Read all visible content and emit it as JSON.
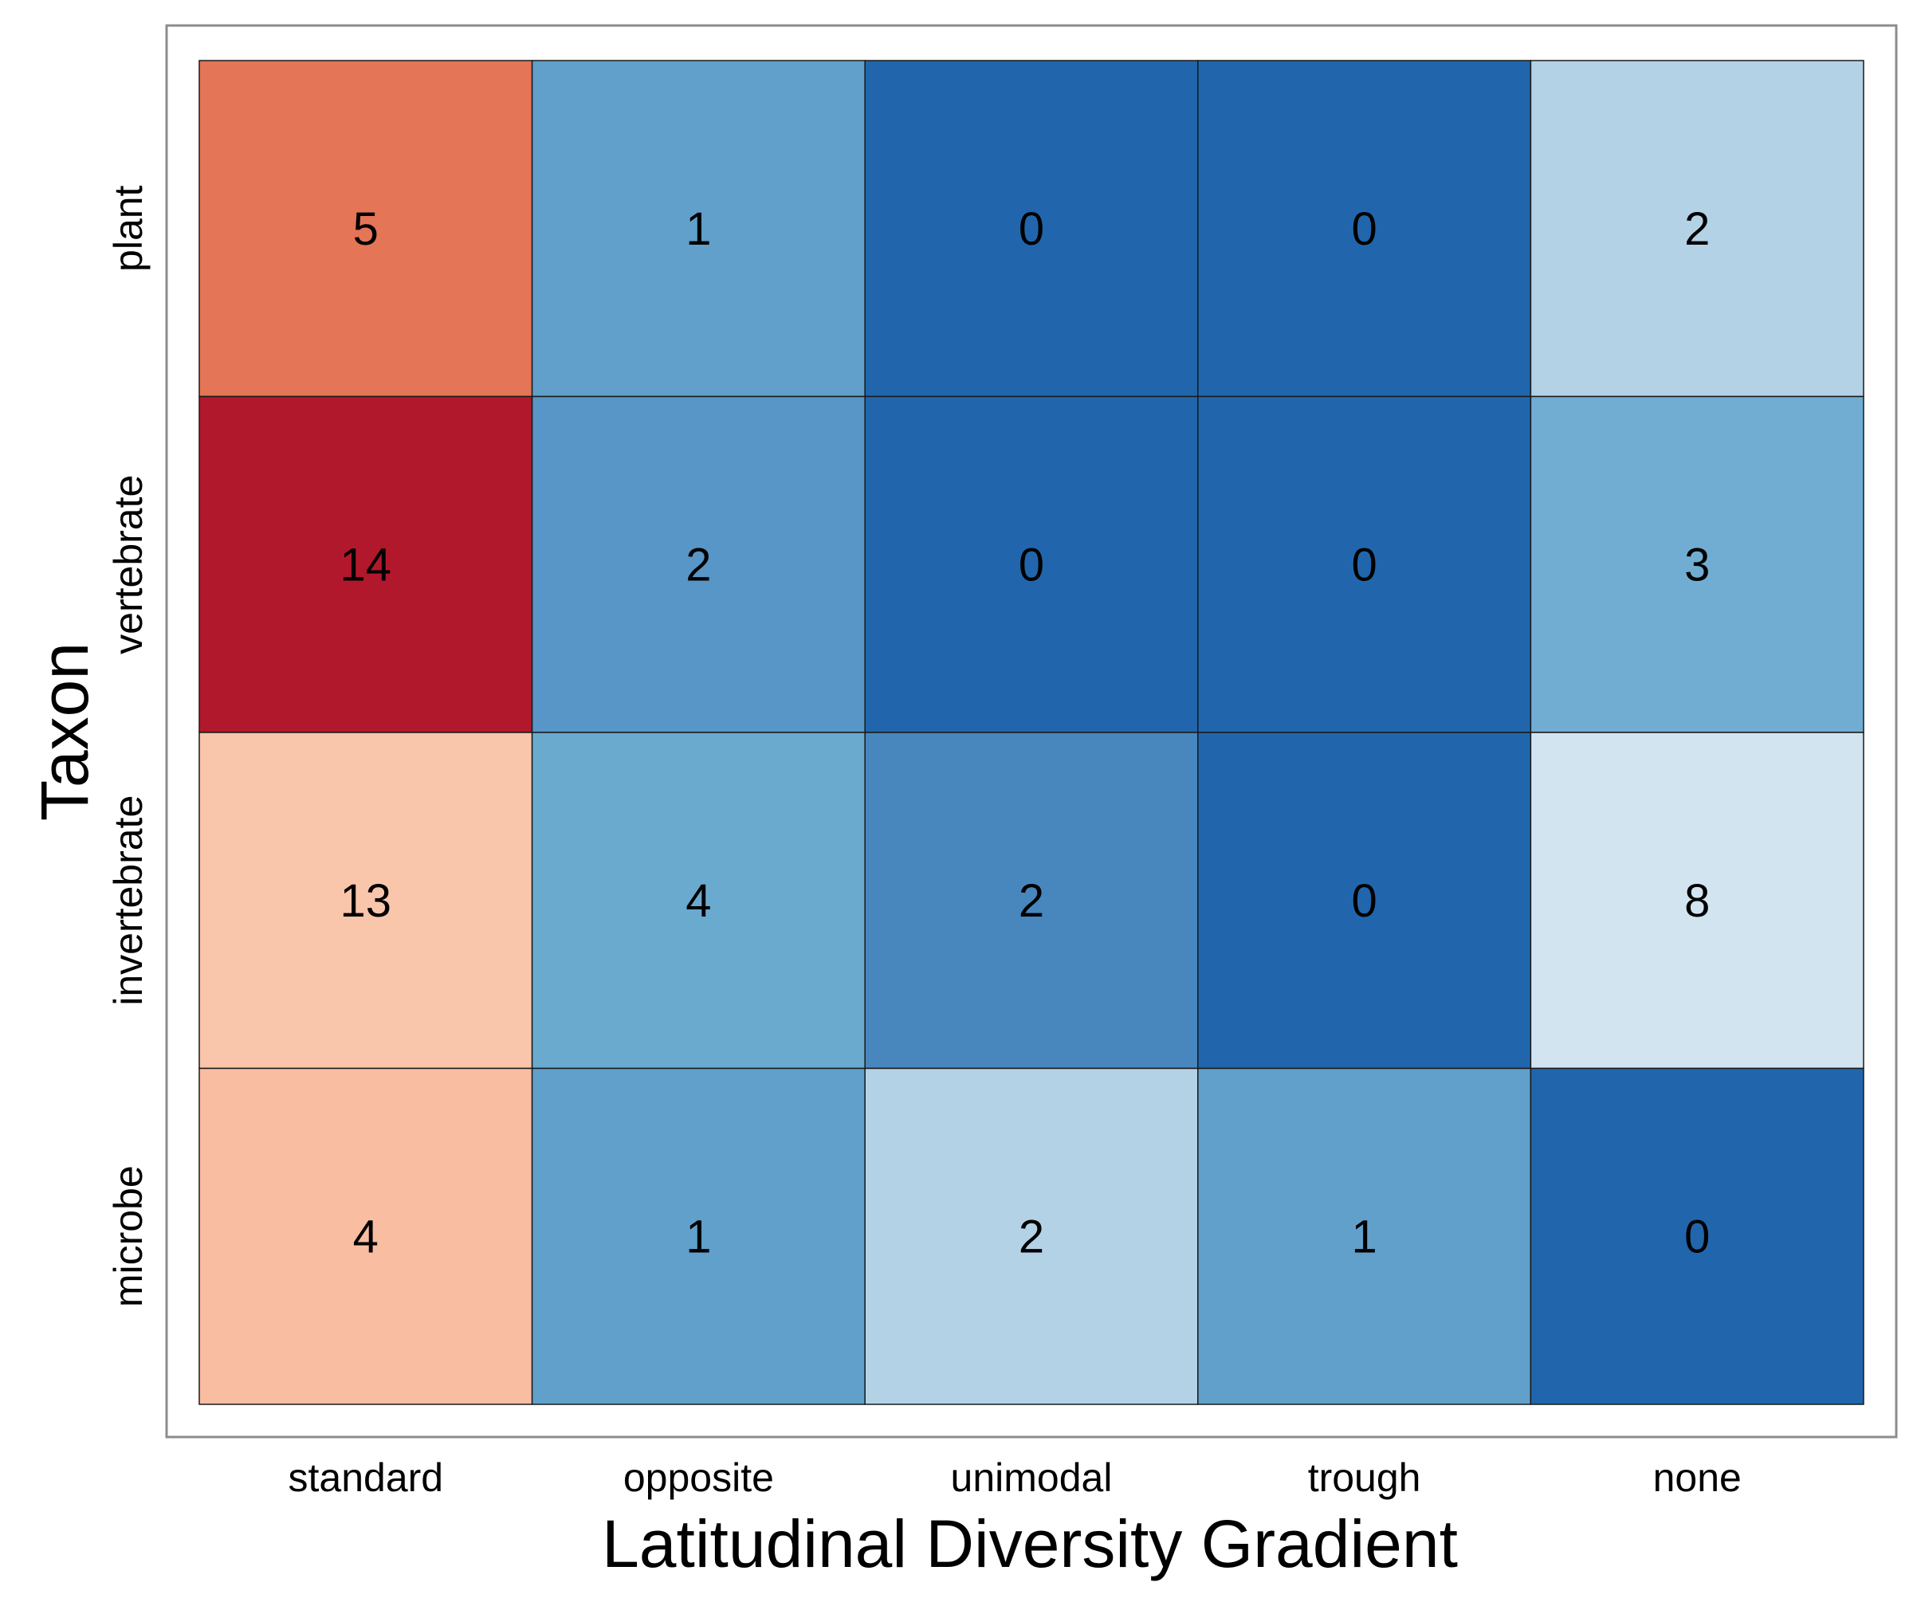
{
  "chart_data": {
    "type": "heatmap",
    "title": "",
    "xlabel": "Latitudinal Diversity Gradient",
    "ylabel": "Taxon",
    "x_categories": [
      "standard",
      "opposite",
      "unimodal",
      "trough",
      "none"
    ],
    "y_categories": [
      "plant",
      "vertebrate",
      "invertebrate",
      "microbe"
    ],
    "values": [
      [
        5,
        1,
        0,
        0,
        2
      ],
      [
        14,
        2,
        0,
        0,
        3
      ],
      [
        13,
        4,
        2,
        0,
        8
      ],
      [
        4,
        1,
        2,
        1,
        0
      ]
    ],
    "cell_colors": [
      [
        "#e47556",
        "#61a0cb",
        "#2166ac",
        "#2166ac",
        "#b4d2e6"
      ],
      [
        "#b2182b",
        "#5796c6",
        "#2166ac",
        "#2166ac",
        "#71add3"
      ],
      [
        "#f9c5ab",
        "#6aaacf",
        "#4886be",
        "#2166ac",
        "#d2e4f0"
      ],
      [
        "#f9bda1",
        "#61a0cb",
        "#b4d2e6",
        "#61a0cb",
        "#2166ac"
      ]
    ],
    "legend": "none",
    "grid": false
  }
}
